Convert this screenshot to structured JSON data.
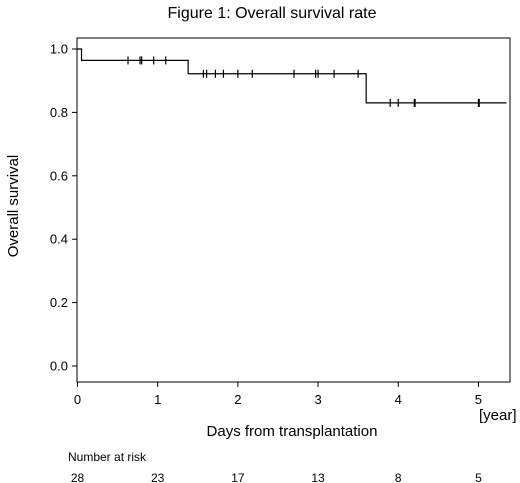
{
  "chart_data": {
    "type": "line",
    "step": true,
    "title": "Figure 1: Overall survival rate",
    "xlabel": "Days from transplantation",
    "xunit": "[year]",
    "ylabel": "Overall survival",
    "xlim": [
      0,
      5.4
    ],
    "ylim": [
      0,
      1.0
    ],
    "xticks": [
      0,
      1,
      2,
      3,
      4,
      5
    ],
    "xtick_labels": [
      "0",
      "1",
      "2",
      "3",
      "4",
      "5"
    ],
    "yticks": [
      0.0,
      0.2,
      0.4,
      0.6,
      0.8,
      1.0
    ],
    "ytick_labels": [
      "0.0",
      "0.2",
      "0.4",
      "0.6",
      "0.8",
      "1.0"
    ],
    "color": "#000000",
    "steps": [
      {
        "x": 0.0,
        "y": 1.0
      },
      {
        "x": 0.05,
        "y": 0.964
      },
      {
        "x": 1.38,
        "y": 0.922
      },
      {
        "x": 3.6,
        "y": 0.83
      },
      {
        "x": 5.35,
        "y": 0.83
      }
    ],
    "censored": [
      {
        "x": 0.63,
        "y": 0.964
      },
      {
        "x": 0.78,
        "y": 0.964
      },
      {
        "x": 0.8,
        "y": 0.964
      },
      {
        "x": 0.95,
        "y": 0.964
      },
      {
        "x": 1.1,
        "y": 0.964
      },
      {
        "x": 1.57,
        "y": 0.922
      },
      {
        "x": 1.61,
        "y": 0.922
      },
      {
        "x": 1.72,
        "y": 0.922
      },
      {
        "x": 1.82,
        "y": 0.922
      },
      {
        "x": 2.0,
        "y": 0.922
      },
      {
        "x": 2.18,
        "y": 0.922
      },
      {
        "x": 2.7,
        "y": 0.922
      },
      {
        "x": 2.97,
        "y": 0.922
      },
      {
        "x": 3.0,
        "y": 0.922
      },
      {
        "x": 3.2,
        "y": 0.922
      },
      {
        "x": 3.5,
        "y": 0.922
      },
      {
        "x": 3.9,
        "y": 0.83
      },
      {
        "x": 4.0,
        "y": 0.83
      },
      {
        "x": 4.2,
        "y": 0.83
      },
      {
        "x": 4.21,
        "y": 0.83
      },
      {
        "x": 5.0,
        "y": 0.83
      },
      {
        "x": 5.01,
        "y": 0.83
      }
    ],
    "risk_table": {
      "label": "Number at risk",
      "times": [
        0,
        1,
        2,
        3,
        4,
        5
      ],
      "counts": [
        "28",
        "23",
        "17",
        "13",
        "8",
        "5"
      ]
    }
  }
}
